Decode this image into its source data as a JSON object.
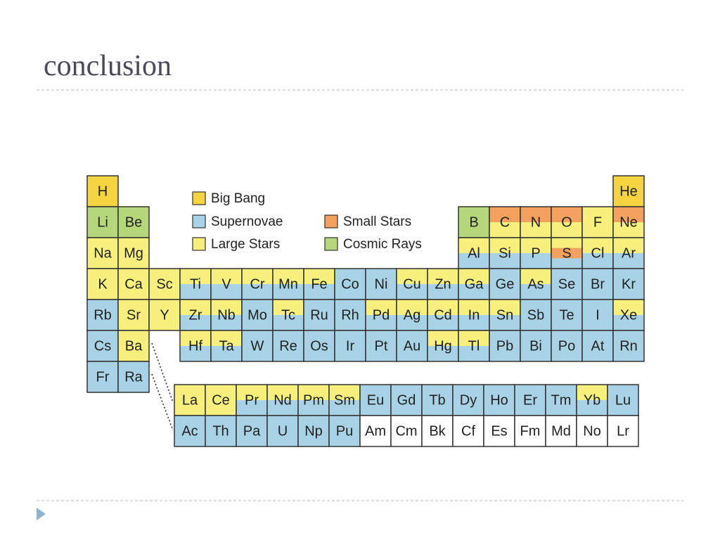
{
  "header": {
    "title": "conclusion"
  },
  "legend": [
    {
      "label": "Big Bang",
      "color": "#f5d442"
    },
    {
      "label": "Supernovae",
      "color": "#a8d3e6"
    },
    {
      "label": "Large Stars",
      "color": "#f8f07c"
    },
    {
      "label": "Small Stars",
      "color": "#f4a05e"
    },
    {
      "label": "Cosmic Rays",
      "color": "#b5d77a"
    }
  ],
  "table": {
    "rows": [
      [
        {
          "symbol": "H",
          "fill": [
            "#f5d442"
          ]
        },
        {
          "symbol": "He",
          "fill": [
            "#f5d442"
          ]
        }
      ],
      [
        {
          "symbol": "Li",
          "fill": [
            "#b5d77a"
          ]
        },
        {
          "symbol": "Be",
          "fill": [
            "#b5d77a"
          ]
        },
        {
          "symbol": "B",
          "fill": [
            "#b5d77a"
          ]
        },
        {
          "symbol": "C",
          "fill": [
            "#f4a05e",
            "#f8f07c"
          ]
        },
        {
          "symbol": "N",
          "fill": [
            "#f4a05e",
            "#f8f07c"
          ]
        },
        {
          "symbol": "O",
          "fill": [
            "#f4a05e",
            "#f8f07c"
          ]
        },
        {
          "symbol": "F",
          "fill": [
            "#f8f07c"
          ]
        },
        {
          "symbol": "Ne",
          "fill": [
            "#f4a05e",
            "#f8f07c"
          ]
        }
      ],
      [
        {
          "symbol": "Na",
          "fill": [
            "#f8f07c"
          ]
        },
        {
          "symbol": "Mg",
          "fill": [
            "#f8f07c"
          ]
        },
        {
          "symbol": "Al",
          "fill": [
            "#f8f07c",
            "#a8d3e6"
          ]
        },
        {
          "symbol": "Si",
          "fill": [
            "#f8f07c",
            "#a8d3e6"
          ]
        },
        {
          "symbol": "P",
          "fill": [
            "#f8f07c",
            "#a8d3e6"
          ]
        },
        {
          "symbol": "S",
          "fill": [
            "#f8f07c",
            "#f4a05e",
            "#a8d3e6"
          ]
        },
        {
          "symbol": "Cl",
          "fill": [
            "#f8f07c",
            "#a8d3e6"
          ]
        },
        {
          "symbol": "Ar",
          "fill": [
            "#f8f07c",
            "#a8d3e6"
          ]
        }
      ],
      [
        {
          "symbol": "K",
          "fill": [
            "#f8f07c"
          ]
        },
        {
          "symbol": "Ca",
          "fill": [
            "#f8f07c"
          ]
        },
        {
          "symbol": "Sc",
          "fill": [
            "#f8f07c"
          ]
        },
        {
          "symbol": "Ti",
          "fill": [
            "#f8f07c",
            "#a8d3e6"
          ]
        },
        {
          "symbol": "V",
          "fill": [
            "#f8f07c",
            "#a8d3e6"
          ]
        },
        {
          "symbol": "Cr",
          "fill": [
            "#f8f07c",
            "#a8d3e6"
          ]
        },
        {
          "symbol": "Mn",
          "fill": [
            "#f8f07c",
            "#a8d3e6"
          ]
        },
        {
          "symbol": "Fe",
          "fill": [
            "#f8f07c",
            "#a8d3e6"
          ]
        },
        {
          "symbol": "Co",
          "fill": [
            "#a8d3e6"
          ]
        },
        {
          "symbol": "Ni",
          "fill": [
            "#a8d3e6"
          ]
        },
        {
          "symbol": "Cu",
          "fill": [
            "#f8f07c",
            "#a8d3e6"
          ]
        },
        {
          "symbol": "Zn",
          "fill": [
            "#f8f07c",
            "#a8d3e6"
          ]
        },
        {
          "symbol": "Ga",
          "fill": [
            "#f8f07c",
            "#a8d3e6"
          ]
        },
        {
          "symbol": "Ge",
          "fill": [
            "#a8d3e6"
          ]
        },
        {
          "symbol": "As",
          "fill": [
            "#f8f07c",
            "#a8d3e6"
          ]
        },
        {
          "symbol": "Se",
          "fill": [
            "#a8d3e6"
          ]
        },
        {
          "symbol": "Br",
          "fill": [
            "#a8d3e6"
          ]
        },
        {
          "symbol": "Kr",
          "fill": [
            "#a8d3e6"
          ]
        }
      ],
      [
        {
          "symbol": "Rb",
          "fill": [
            "#a8d3e6"
          ]
        },
        {
          "symbol": "Sr",
          "fill": [
            "#f8f07c"
          ]
        },
        {
          "symbol": "Y",
          "fill": [
            "#f8f07c"
          ]
        },
        {
          "symbol": "Zr",
          "fill": [
            "#f8f07c",
            "#a8d3e6"
          ]
        },
        {
          "symbol": "Nb",
          "fill": [
            "#f8f07c",
            "#a8d3e6"
          ]
        },
        {
          "symbol": "Mo",
          "fill": [
            "#a8d3e6"
          ]
        },
        {
          "symbol": "Tc",
          "fill": [
            "#f8f07c",
            "#a8d3e6"
          ]
        },
        {
          "symbol": "Ru",
          "fill": [
            "#a8d3e6"
          ]
        },
        {
          "symbol": "Rh",
          "fill": [
            "#a8d3e6"
          ]
        },
        {
          "symbol": "Pd",
          "fill": [
            "#f8f07c",
            "#a8d3e6"
          ]
        },
        {
          "symbol": "Ag",
          "fill": [
            "#f8f07c",
            "#a8d3e6"
          ]
        },
        {
          "symbol": "Cd",
          "fill": [
            "#f8f07c",
            "#a8d3e6"
          ]
        },
        {
          "symbol": "In",
          "fill": [
            "#f8f07c",
            "#a8d3e6"
          ]
        },
        {
          "symbol": "Sn",
          "fill": [
            "#f8f07c",
            "#a8d3e6"
          ]
        },
        {
          "symbol": "Sb",
          "fill": [
            "#a8d3e6"
          ]
        },
        {
          "symbol": "Te",
          "fill": [
            "#a8d3e6"
          ]
        },
        {
          "symbol": "I",
          "fill": [
            "#a8d3e6"
          ]
        },
        {
          "symbol": "Xe",
          "fill": [
            "#f8f07c",
            "#a8d3e6"
          ]
        }
      ],
      [
        {
          "symbol": "Cs",
          "fill": [
            "#a8d3e6"
          ]
        },
        {
          "symbol": "Ba",
          "fill": [
            "#f8f07c"
          ]
        },
        {
          "symbol": "Hf",
          "fill": [
            "#f8f07c",
            "#a8d3e6"
          ]
        },
        {
          "symbol": "Ta",
          "fill": [
            "#f8f07c",
            "#a8d3e6"
          ]
        },
        {
          "symbol": "W",
          "fill": [
            "#a8d3e6"
          ]
        },
        {
          "symbol": "Re",
          "fill": [
            "#a8d3e6"
          ]
        },
        {
          "symbol": "Os",
          "fill": [
            "#a8d3e6"
          ]
        },
        {
          "symbol": "Ir",
          "fill": [
            "#a8d3e6"
          ]
        },
        {
          "symbol": "Pt",
          "fill": [
            "#a8d3e6"
          ]
        },
        {
          "symbol": "Au",
          "fill": [
            "#a8d3e6"
          ]
        },
        {
          "symbol": "Hg",
          "fill": [
            "#f8f07c",
            "#a8d3e6"
          ]
        },
        {
          "symbol": "Tl",
          "fill": [
            "#f8f07c",
            "#a8d3e6"
          ]
        },
        {
          "symbol": "Pb",
          "fill": [
            "#a8d3e6"
          ]
        },
        {
          "symbol": "Bi",
          "fill": [
            "#a8d3e6"
          ]
        },
        {
          "symbol": "Po",
          "fill": [
            "#a8d3e6"
          ]
        },
        {
          "symbol": "At",
          "fill": [
            "#a8d3e6"
          ]
        },
        {
          "symbol": "Rn",
          "fill": [
            "#a8d3e6"
          ]
        }
      ],
      [
        {
          "symbol": "Fr",
          "fill": [
            "#a8d3e6"
          ]
        },
        {
          "symbol": "Ra",
          "fill": [
            "#a8d3e6"
          ]
        }
      ]
    ],
    "lanthanides": [
      {
        "symbol": "La",
        "fill": [
          "#f8f07c"
        ]
      },
      {
        "symbol": "Ce",
        "fill": [
          "#f8f07c"
        ]
      },
      {
        "symbol": "Pr",
        "fill": [
          "#f8f07c",
          "#a8d3e6"
        ]
      },
      {
        "symbol": "Nd",
        "fill": [
          "#f8f07c",
          "#a8d3e6"
        ]
      },
      {
        "symbol": "Pm",
        "fill": [
          "#f8f07c",
          "#a8d3e6"
        ]
      },
      {
        "symbol": "Sm",
        "fill": [
          "#f8f07c",
          "#a8d3e6"
        ]
      },
      {
        "symbol": "Eu",
        "fill": [
          "#a8d3e6"
        ]
      },
      {
        "symbol": "Gd",
        "fill": [
          "#a8d3e6"
        ]
      },
      {
        "symbol": "Tb",
        "fill": [
          "#a8d3e6"
        ]
      },
      {
        "symbol": "Dy",
        "fill": [
          "#a8d3e6"
        ]
      },
      {
        "symbol": "Ho",
        "fill": [
          "#a8d3e6"
        ]
      },
      {
        "symbol": "Er",
        "fill": [
          "#a8d3e6"
        ]
      },
      {
        "symbol": "Tm",
        "fill": [
          "#a8d3e6"
        ]
      },
      {
        "symbol": "Yb",
        "fill": [
          "#f8f07c",
          "#a8d3e6"
        ]
      },
      {
        "symbol": "Lu",
        "fill": [
          "#a8d3e6"
        ]
      }
    ],
    "actinides": [
      {
        "symbol": "Ac",
        "fill": [
          "#a8d3e6"
        ]
      },
      {
        "symbol": "Th",
        "fill": [
          "#a8d3e6"
        ]
      },
      {
        "symbol": "Pa",
        "fill": [
          "#a8d3e6"
        ]
      },
      {
        "symbol": "U",
        "fill": [
          "#a8d3e6"
        ]
      },
      {
        "symbol": "Np",
        "fill": [
          "#a8d3e6"
        ]
      },
      {
        "symbol": "Pu",
        "fill": [
          "#a8d3e6"
        ]
      },
      {
        "symbol": "Am",
        "fill": [
          "#ffffff"
        ]
      },
      {
        "symbol": "Cm",
        "fill": [
          "#ffffff"
        ]
      },
      {
        "symbol": "Bk",
        "fill": [
          "#ffffff"
        ]
      },
      {
        "symbol": "Cf",
        "fill": [
          "#ffffff"
        ]
      },
      {
        "symbol": "Es",
        "fill": [
          "#ffffff"
        ]
      },
      {
        "symbol": "Fm",
        "fill": [
          "#ffffff"
        ]
      },
      {
        "symbol": "Md",
        "fill": [
          "#ffffff"
        ]
      },
      {
        "symbol": "No",
        "fill": [
          "#ffffff"
        ]
      },
      {
        "symbol": "Lr",
        "fill": [
          "#ffffff"
        ]
      }
    ]
  }
}
